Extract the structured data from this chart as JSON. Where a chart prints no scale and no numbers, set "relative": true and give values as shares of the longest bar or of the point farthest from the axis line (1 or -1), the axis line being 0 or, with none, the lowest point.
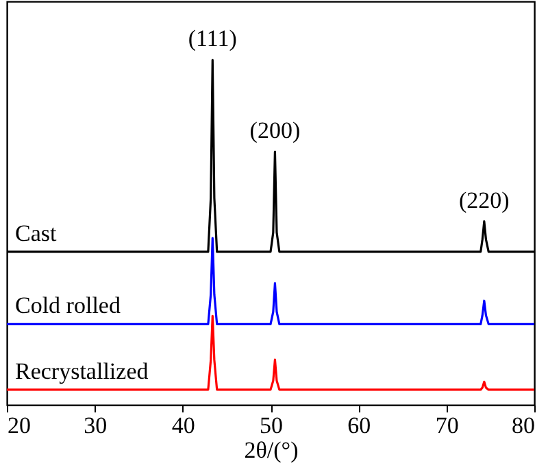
{
  "chart_data": {
    "type": "line",
    "relative": true,
    "xlabel": "2θ/(°)",
    "xlim": [
      20,
      80
    ],
    "xticks": [
      20,
      30,
      40,
      50,
      60,
      70,
      80
    ],
    "x": [
      20,
      42.9,
      43.2,
      43.4,
      43.6,
      43.9,
      50.0,
      50.3,
      50.5,
      50.7,
      51.0,
      73.9,
      74.1,
      74.3,
      74.5,
      74.8,
      80
    ],
    "series": [
      {
        "name": "Cast",
        "color": "#000000",
        "values": [
          0.444,
          0.444,
          0.6,
          1,
          0.6,
          0.444,
          0.444,
          0.5,
          0.734,
          0.5,
          0.444,
          0.444,
          0.48,
          0.532,
          0.48,
          0.444,
          0.444
        ]
      },
      {
        "name": "Cold rolled",
        "color": "#0000ff",
        "values": [
          0.234,
          0.234,
          0.32,
          0.484,
          0.32,
          0.234,
          0.234,
          0.27,
          0.353,
          0.27,
          0.234,
          0.234,
          0.26,
          0.302,
          0.26,
          0.234,
          0.234
        ]
      },
      {
        "name": "Recrystallized",
        "color": "#ff0000",
        "values": [
          0.044,
          0.044,
          0.13,
          0.258,
          0.13,
          0.044,
          0.044,
          0.07,
          0.131,
          0.07,
          0.044,
          0.044,
          0.05,
          0.067,
          0.05,
          0.044,
          0.044
        ]
      }
    ],
    "annotations": [
      {
        "text": "(111)",
        "x": 43.4,
        "y": 1
      },
      {
        "text": "(200)",
        "x": 50.5,
        "y": 0.734
      },
      {
        "text": "(220)",
        "x": 74.3,
        "y": 0.532
      }
    ]
  }
}
